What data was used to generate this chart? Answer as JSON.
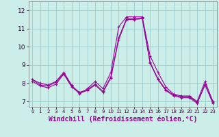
{
  "xlabel": "Windchill (Refroidissement éolien,°C)",
  "ylabel": "",
  "background_color": "#cceee8",
  "line_color": "#990099",
  "grid_color": "#99cccc",
  "xlim": [
    -0.5,
    23.5
  ],
  "ylim": [
    6.7,
    12.5
  ],
  "xticks": [
    0,
    1,
    2,
    3,
    4,
    5,
    6,
    7,
    8,
    9,
    10,
    11,
    12,
    13,
    14,
    15,
    16,
    17,
    18,
    19,
    20,
    21,
    22,
    23
  ],
  "yticks": [
    7,
    8,
    9,
    10,
    11,
    12
  ],
  "line1": [
    8.2,
    8.0,
    7.9,
    8.1,
    8.6,
    7.9,
    7.4,
    7.7,
    8.1,
    7.7,
    8.6,
    11.1,
    11.65,
    11.65,
    11.65,
    9.5,
    8.6,
    7.8,
    7.4,
    7.3,
    7.3,
    7.0,
    8.1,
    7.0
  ],
  "line2": [
    8.2,
    7.9,
    7.85,
    8.05,
    8.55,
    7.85,
    7.5,
    7.65,
    7.95,
    7.55,
    8.35,
    10.5,
    11.55,
    11.55,
    11.6,
    9.15,
    8.25,
    7.65,
    7.35,
    7.25,
    7.25,
    6.95,
    7.95,
    6.95
  ],
  "line3": [
    8.1,
    7.85,
    7.75,
    7.95,
    8.5,
    7.8,
    7.45,
    7.6,
    7.9,
    7.5,
    8.3,
    10.4,
    11.5,
    11.5,
    11.55,
    9.1,
    8.2,
    7.6,
    7.3,
    7.2,
    7.2,
    6.9,
    7.9,
    6.9
  ],
  "marker_size": 2.0,
  "linewidth": 0.8,
  "xlabel_fontsize": 7,
  "tick_fontsize": 6.5
}
